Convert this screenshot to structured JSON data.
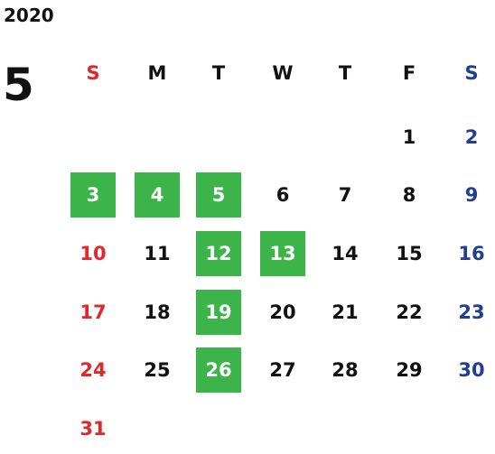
{
  "year": "2020",
  "month": "5",
  "weekdays": [
    "S",
    "M",
    "T",
    "W",
    "T",
    "F",
    "S"
  ],
  "colors": {
    "sunday": "#e3262b",
    "saturday": "#1f3e94",
    "weekday": "#111111",
    "highlight": "#3cb44a",
    "highlight_text": "#ffffff"
  },
  "weeks": [
    [
      null,
      null,
      null,
      null,
      null,
      {
        "day": 1
      },
      {
        "day": 2
      }
    ],
    [
      {
        "day": 3,
        "highlighted": true
      },
      {
        "day": 4,
        "highlighted": true
      },
      {
        "day": 5,
        "highlighted": true
      },
      {
        "day": 6
      },
      {
        "day": 7
      },
      {
        "day": 8
      },
      {
        "day": 9
      }
    ],
    [
      {
        "day": 10
      },
      {
        "day": 11
      },
      {
        "day": 12,
        "highlighted": true
      },
      {
        "day": 13,
        "highlighted": true
      },
      {
        "day": 14
      },
      {
        "day": 15
      },
      {
        "day": 16
      }
    ],
    [
      {
        "day": 17
      },
      {
        "day": 18
      },
      {
        "day": 19,
        "highlighted": true
      },
      {
        "day": 20
      },
      {
        "day": 21
      },
      {
        "day": 22
      },
      {
        "day": 23
      }
    ],
    [
      {
        "day": 24
      },
      {
        "day": 25
      },
      {
        "day": 26,
        "highlighted": true
      },
      {
        "day": 27
      },
      {
        "day": 28
      },
      {
        "day": 29
      },
      {
        "day": 30
      }
    ],
    [
      {
        "day": 31
      },
      null,
      null,
      null,
      null,
      null,
      null
    ]
  ]
}
